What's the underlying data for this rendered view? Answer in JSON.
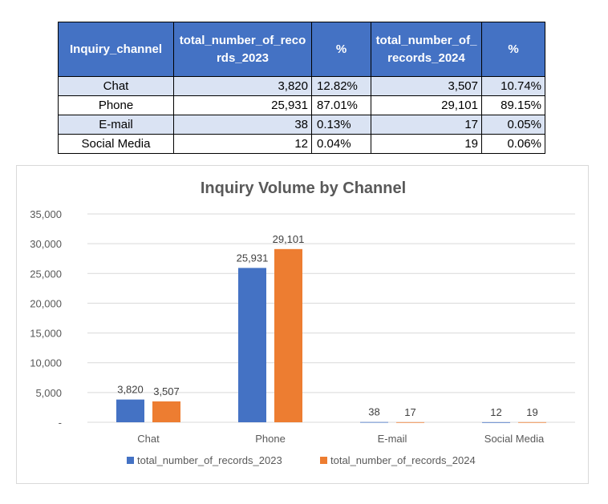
{
  "table": {
    "headers": [
      "Inquiry_channel",
      "total_number_of_records_2023",
      "%",
      "total_number_of_records_2024",
      "%"
    ],
    "rows": [
      {
        "channel": "Chat",
        "records_2023": "3,820",
        "pct_2023": "12.82%",
        "records_2024": "3,507",
        "pct_2024": "10.74%"
      },
      {
        "channel": "Phone",
        "records_2023": "25,931",
        "pct_2023": "87.01%",
        "records_2024": "29,101",
        "pct_2024": "89.15%"
      },
      {
        "channel": "E-mail",
        "records_2023": "38",
        "pct_2023": "0.13%",
        "records_2024": "17",
        "pct_2024": "0.05%"
      },
      {
        "channel": "Social Media",
        "records_2023": "12",
        "pct_2023": "0.04%",
        "records_2024": "19",
        "pct_2024": "0.06%"
      }
    ],
    "header_color": "#4472c4",
    "band_color": "#dae3f3"
  },
  "chart_data": {
    "type": "bar",
    "title": "Inquiry Volume by Channel",
    "categories": [
      "Chat",
      "Phone",
      "E-mail",
      "Social Media"
    ],
    "series": [
      {
        "name": "total_number_of_records_2023",
        "values": [
          3820,
          25931,
          38,
          12
        ],
        "color": "#4472c4"
      },
      {
        "name": "total_number_of_records_2024",
        "values": [
          3507,
          29101,
          17,
          19
        ],
        "color": "#ed7d31"
      }
    ],
    "ylim": [
      0,
      35000
    ],
    "yticks": [
      0,
      5000,
      10000,
      15000,
      20000,
      25000,
      30000,
      35000
    ],
    "ytick_labels": [
      "-",
      "5,000",
      "10,000",
      "15,000",
      "20,000",
      "25,000",
      "30,000",
      "35,000"
    ],
    "xlabel": "",
    "ylabel": "",
    "grid": true,
    "legend_position": "bottom",
    "data_labels": true
  }
}
